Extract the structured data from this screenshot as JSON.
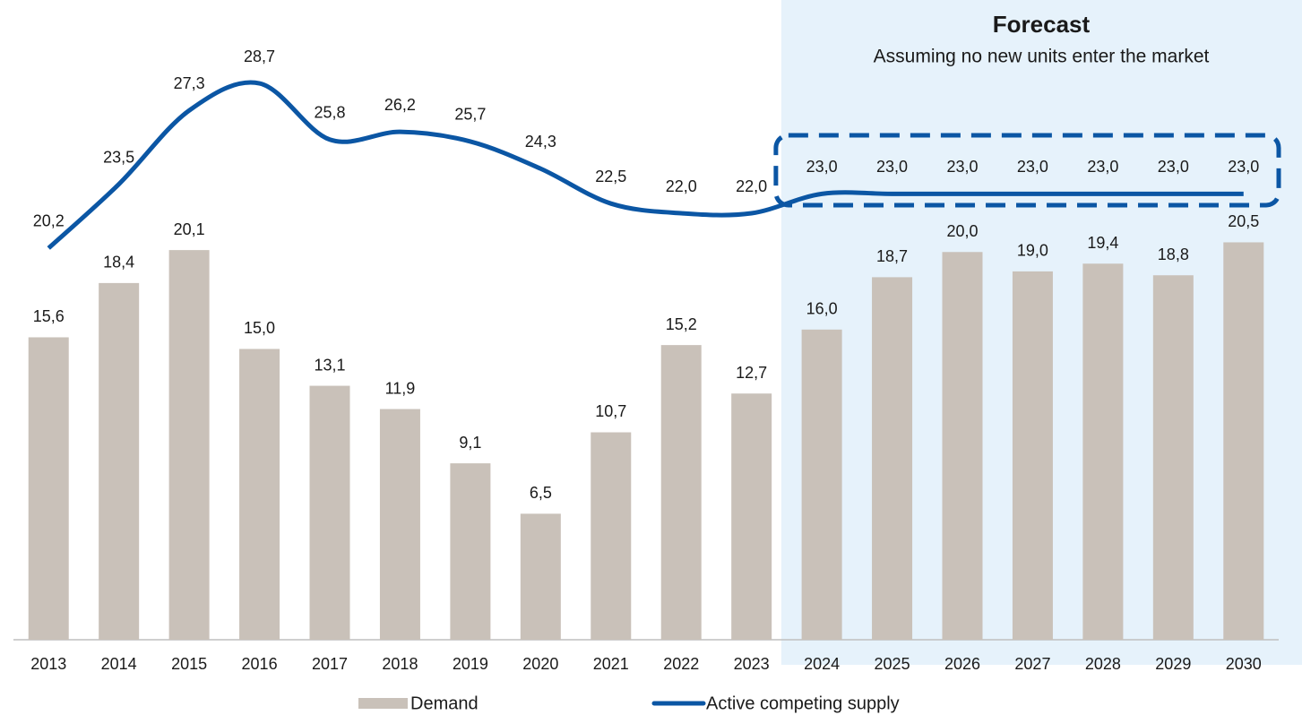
{
  "chart_data": {
    "type": "bar_line",
    "annotation": {
      "title": "Forecast",
      "subtitle": "Assuming no new units enter the market"
    },
    "categories": [
      "2013",
      "2014",
      "2015",
      "2016",
      "2017",
      "2018",
      "2019",
      "2020",
      "2021",
      "2022",
      "2023",
      "2024",
      "2025",
      "2026",
      "2027",
      "2028",
      "2029",
      "2030"
    ],
    "series": [
      {
        "name": "Demand",
        "type": "bar",
        "color": "#c9c1b9",
        "values": [
          15.6,
          18.4,
          20.1,
          15.0,
          13.1,
          11.9,
          9.1,
          6.5,
          10.7,
          15.2,
          12.7,
          16.0,
          18.7,
          20.0,
          19.0,
          19.4,
          18.8,
          20.5
        ],
        "value_labels": [
          "15,6",
          "18,4",
          "20,1",
          "15,0",
          "13,1",
          "11,9",
          "9,1",
          "6,5",
          "10,7",
          "15,2",
          "12,7",
          "16,0",
          "18,7",
          "20,0",
          "19,0",
          "19,4",
          "18,8",
          "20,5"
        ]
      },
      {
        "name": "Active competing supply",
        "type": "line",
        "color": "#0b56a4",
        "values": [
          20.2,
          23.5,
          27.3,
          28.7,
          25.8,
          26.2,
          25.7,
          24.3,
          22.5,
          22.0,
          22.0,
          23.0,
          23.0,
          23.0,
          23.0,
          23.0,
          23.0,
          23.0
        ],
        "value_labels": [
          "20,2",
          "23,5",
          "27,3",
          "28,7",
          "25,8",
          "26,2",
          "25,7",
          "24,3",
          "22,5",
          "22,0",
          "22,0",
          "23,0",
          "23,0",
          "23,0",
          "23,0",
          "23,0",
          "23,0",
          "23,0"
        ]
      }
    ],
    "ylim": [
      0,
      33
    ],
    "legend": "bottom"
  }
}
